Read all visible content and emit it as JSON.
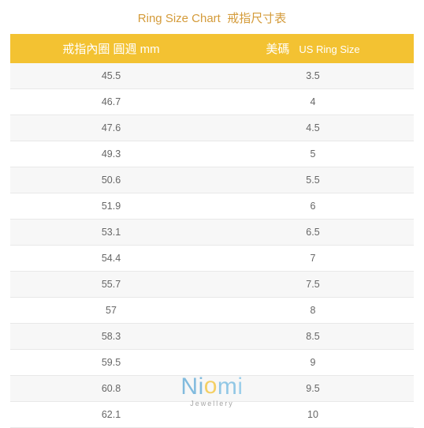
{
  "title": {
    "en": "Ring Size Chart",
    "zh": "戒指尺寸表",
    "color": "#d49b3a",
    "fontsize": 15
  },
  "table": {
    "type": "table",
    "header_bg": "#f3c232",
    "header_fg": "#ffffff",
    "row_alt_bg": "#f7f7f7",
    "border_color": "#e8e8e8",
    "cell_fg": "#666666",
    "cell_fontsize": 12.5,
    "columns": [
      {
        "label_zh": "戒指內圈 圓週 mm",
        "label_en": ""
      },
      {
        "label_zh": "美碼",
        "label_en": "US Ring Size"
      }
    ],
    "rows": [
      [
        "45.5",
        "3.5"
      ],
      [
        "46.7",
        "4"
      ],
      [
        "47.6",
        "4.5"
      ],
      [
        "49.3",
        "5"
      ],
      [
        "50.6",
        "5.5"
      ],
      [
        "51.9",
        "6"
      ],
      [
        "53.1",
        "6.5"
      ],
      [
        "54.4",
        "7"
      ],
      [
        "55.7",
        "7.5"
      ],
      [
        "57",
        "8"
      ],
      [
        "58.3",
        "8.5"
      ],
      [
        "59.5",
        "9"
      ],
      [
        "60.8",
        "9.5"
      ],
      [
        "62.1",
        "10"
      ]
    ]
  },
  "watermark": {
    "brand": "Niomi",
    "tagline": "Jewellery",
    "colors": {
      "n": "#5aa7d6",
      "i": "#5aa7d6",
      "o": "#f3c232",
      "m": "#6fb8e0",
      "i2": "#7ec2e8"
    }
  }
}
